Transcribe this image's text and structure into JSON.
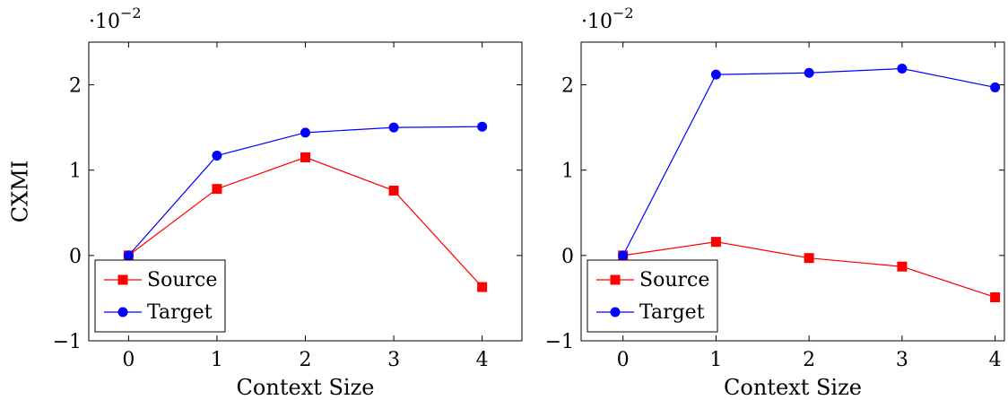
{
  "chart_data": [
    {
      "type": "line",
      "title": "",
      "xlabel": "Context Size",
      "ylabel": "CXMI",
      "scale_note": "·10",
      "scale_exp": "−2",
      "x": [
        0,
        1,
        2,
        3,
        4
      ],
      "x_tick_labels": [
        "0",
        "1",
        "2",
        "3",
        "4"
      ],
      "xlim": [
        -0.45,
        4.45
      ],
      "y_ticks": [
        -1,
        0,
        1,
        2
      ],
      "y_tick_labels": [
        "−1",
        "0",
        "1",
        "2"
      ],
      "ylim": [
        -1,
        2.5
      ],
      "legend_position": "bottom-left",
      "series": [
        {
          "name": "Source",
          "color": "#ff0000",
          "marker": "square",
          "values": [
            0,
            0.78,
            1.15,
            0.76,
            -0.37
          ]
        },
        {
          "name": "Target",
          "color": "#0000ff",
          "marker": "circle",
          "values": [
            0,
            1.17,
            1.44,
            1.5,
            1.51
          ]
        }
      ]
    },
    {
      "type": "line",
      "title": "",
      "xlabel": "Context Size",
      "ylabel": "",
      "scale_note": "·10",
      "scale_exp": "−2",
      "x": [
        0,
        1,
        2,
        3,
        4
      ],
      "x_tick_labels": [
        "0",
        "1",
        "2",
        "3",
        "4"
      ],
      "xlim": [
        -0.45,
        4.1
      ],
      "y_ticks": [
        -1,
        0,
        1,
        2
      ],
      "y_tick_labels": [
        "−1",
        "0",
        "1",
        "2"
      ],
      "ylim": [
        -1,
        2.5
      ],
      "legend_position": "bottom-left",
      "series": [
        {
          "name": "Source",
          "color": "#ff0000",
          "marker": "square",
          "values": [
            0,
            0.16,
            -0.03,
            -0.13,
            -0.49
          ]
        },
        {
          "name": "Target",
          "color": "#0000ff",
          "marker": "circle",
          "values": [
            0,
            2.12,
            2.14,
            2.19,
            1.97
          ]
        }
      ]
    }
  ]
}
